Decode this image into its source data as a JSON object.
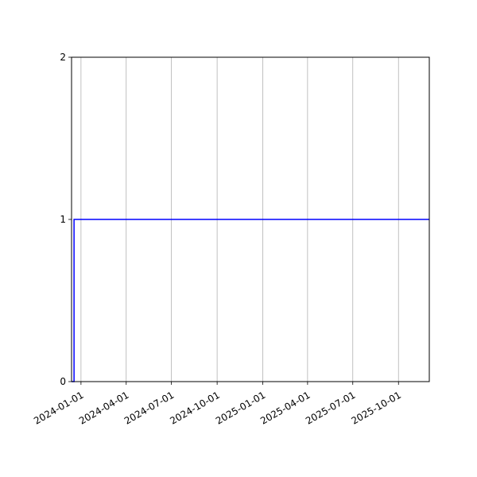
{
  "chart_data": {
    "type": "line",
    "drawstyle": "steps-post",
    "title": "",
    "xlabel": "",
    "ylabel": "",
    "xlim": [
      "2023-12-13",
      "2025-12-02"
    ],
    "ylim": [
      0,
      2
    ],
    "x_ticks": [
      "2024-01-01",
      "2024-04-01",
      "2024-07-01",
      "2024-10-01",
      "2025-01-01",
      "2025-04-01",
      "2025-07-01",
      "2025-10-01"
    ],
    "y_ticks": [
      0,
      1,
      2
    ],
    "grid": "x-axis only",
    "series": [
      {
        "color": "#0000ff",
        "x": [
          "2023-12-13",
          "2023-12-18",
          "2025-12-02"
        ],
        "y": [
          0,
          1,
          1
        ]
      }
    ]
  }
}
